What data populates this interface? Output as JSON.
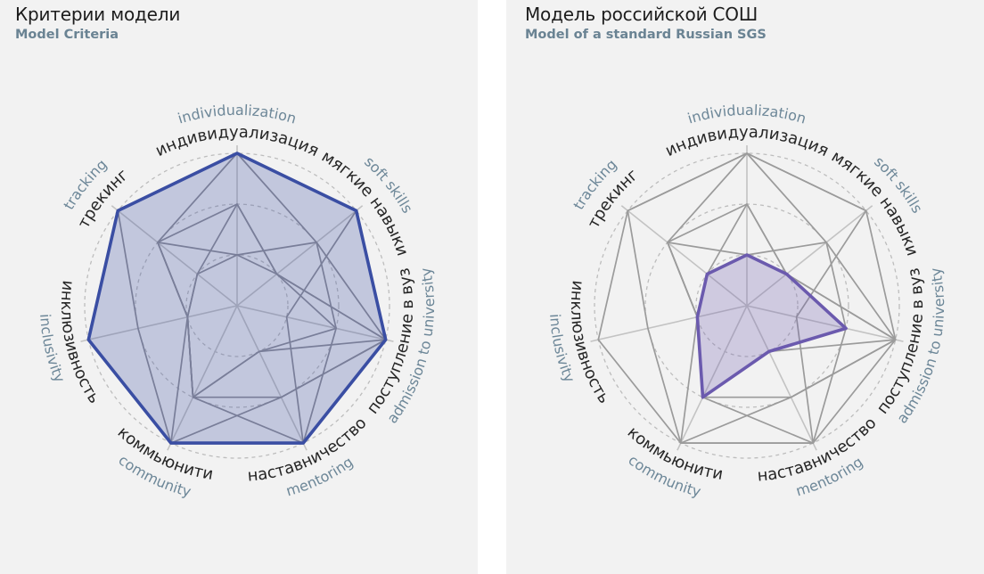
{
  "chart_data": [
    {
      "type": "radar",
      "title": "Критерии модели",
      "subtitle": "Model Criteria",
      "axes": [
        {
          "ru": "индивидуализация",
          "en": "individualization"
        },
        {
          "ru": "мягкие навыки",
          "en": "soft skills"
        },
        {
          "ru": "поступление в вуз",
          "en": "admission to university"
        },
        {
          "ru": "наставничество",
          "en": "mentoring"
        },
        {
          "ru": "коммьюнити",
          "en": "community"
        },
        {
          "ru": "инклюзивность",
          "en": "inclusivity"
        },
        {
          "ru": "трекинг",
          "en": "tracking"
        }
      ],
      "range": [
        0,
        3
      ],
      "grid_levels": [
        1,
        2,
        3
      ],
      "highlight_index": 0,
      "highlight_color": "#3a4ea3",
      "other_color": "#8f8f96",
      "series": [
        {
          "values": [
            3,
            3,
            3,
            3,
            3,
            3,
            3
          ]
        },
        {
          "values": [
            1,
            1,
            2,
            1,
            2,
            1,
            1
          ]
        },
        {
          "values": [
            3,
            2,
            3,
            2,
            3,
            2,
            3
          ]
        },
        {
          "values": [
            2,
            1,
            3,
            1,
            2,
            1,
            1
          ]
        },
        {
          "values": [
            1,
            2,
            2,
            3,
            2,
            1,
            2
          ]
        },
        {
          "values": [
            3,
            3,
            1,
            3,
            3,
            1,
            2
          ]
        },
        {
          "values": [
            2,
            1,
            3,
            2,
            2,
            1,
            2
          ]
        }
      ]
    },
    {
      "type": "radar",
      "title": "Модель российской СОШ",
      "subtitle": "Model of a standard Russian SGS",
      "axes": [
        {
          "ru": "индивидуализация",
          "en": "individualization"
        },
        {
          "ru": "мягкие навыки",
          "en": "soft skills"
        },
        {
          "ru": "поступление в вуз",
          "en": "admission to university"
        },
        {
          "ru": "наставничество",
          "en": "mentoring"
        },
        {
          "ru": "коммьюнити",
          "en": "community"
        },
        {
          "ru": "инклюзивность",
          "en": "inclusivity"
        },
        {
          "ru": "трекинг",
          "en": "tracking"
        }
      ],
      "range": [
        0,
        3
      ],
      "grid_levels": [
        1,
        2,
        3
      ],
      "highlight_index": 1,
      "highlight_color": "#6b5aae",
      "other_color": "#9b9b9b",
      "series": [
        {
          "values": [
            3,
            3,
            3,
            3,
            3,
            3,
            3
          ]
        },
        {
          "values": [
            1,
            1,
            2,
            1,
            2,
            1,
            1
          ]
        },
        {
          "values": [
            3,
            2,
            3,
            2,
            3,
            2,
            3
          ]
        },
        {
          "values": [
            2,
            1,
            3,
            1,
            2,
            1,
            1
          ]
        },
        {
          "values": [
            1,
            2,
            2,
            3,
            2,
            1,
            2
          ]
        },
        {
          "values": [
            3,
            3,
            1,
            3,
            3,
            1,
            2
          ]
        },
        {
          "values": [
            2,
            1,
            3,
            2,
            2,
            1,
            2
          ]
        }
      ]
    }
  ]
}
